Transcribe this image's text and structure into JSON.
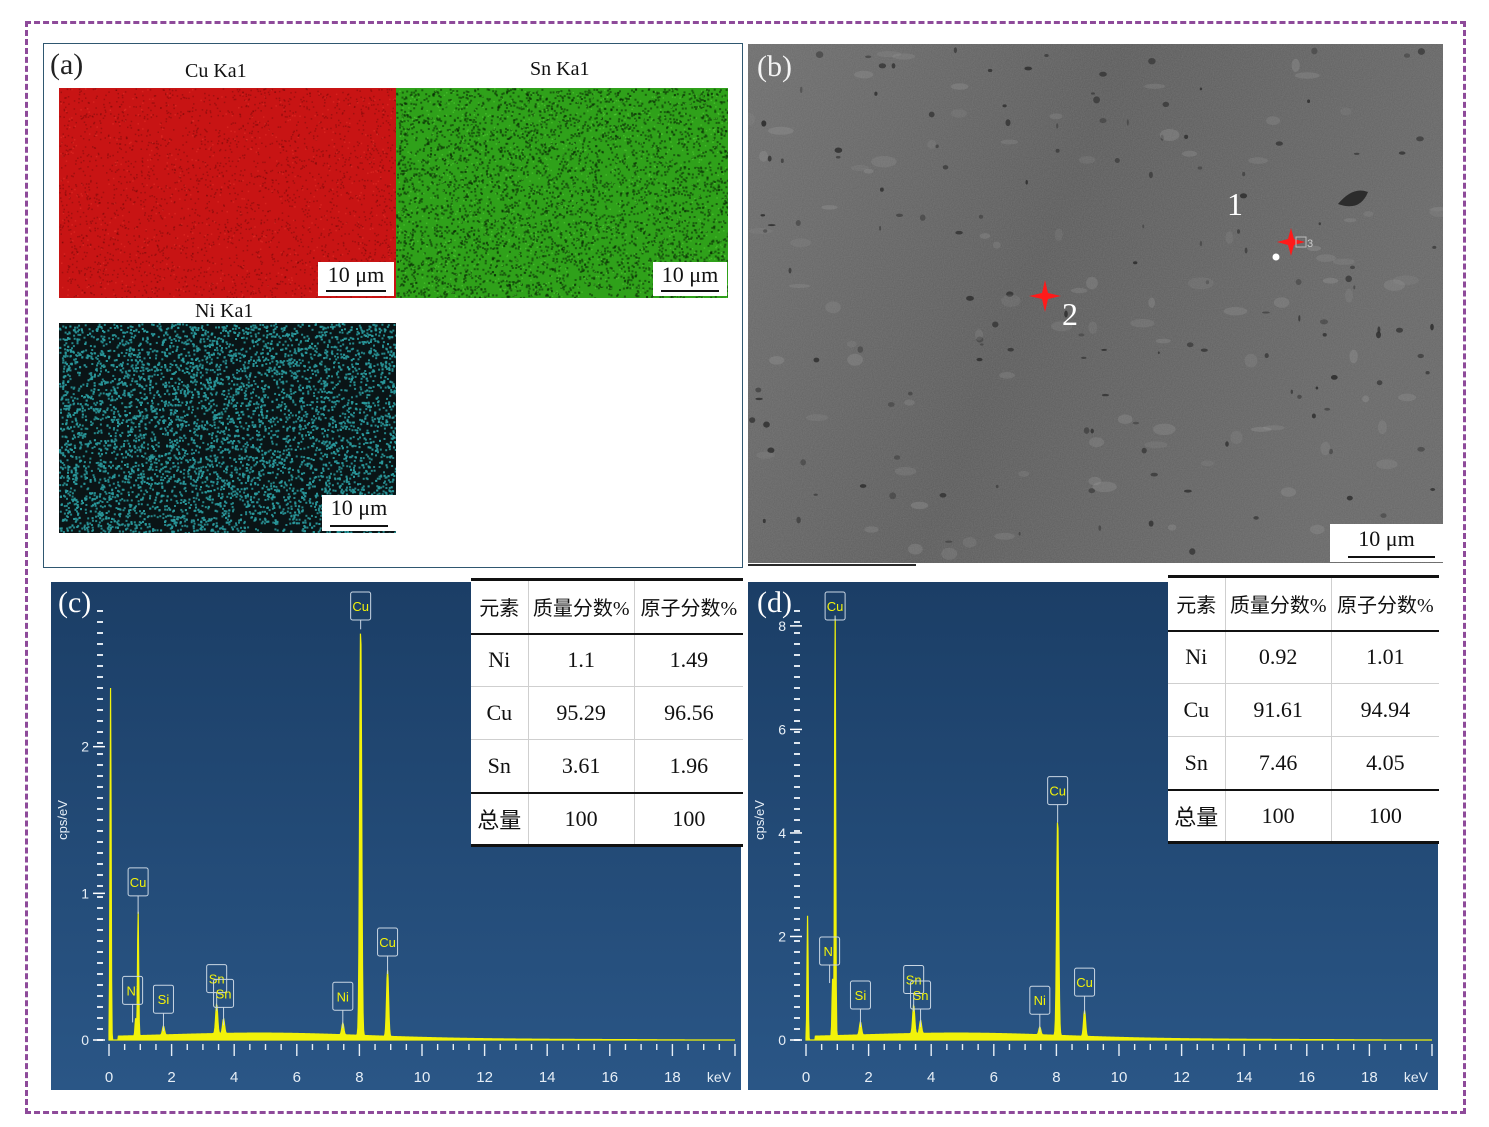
{
  "panels": {
    "a": {
      "label": "(a)",
      "maps": [
        {
          "title": "Cu Ka1",
          "color": "#c81414",
          "scale": "10 μm"
        },
        {
          "title": "Sn Ka1",
          "color": "#2fa11a",
          "scale": "10 μm"
        },
        {
          "title": "Ni Ka1",
          "color": "#2a9a9e",
          "scale": "10 μm"
        }
      ]
    },
    "b": {
      "label": "(b)",
      "points": [
        {
          "label": "1"
        },
        {
          "label": "2"
        }
      ],
      "small_marker": "3",
      "scale": "10 μm"
    },
    "c": {
      "label": "(c)",
      "table": {
        "headers": [
          "元素",
          "质量分数%",
          "原子分数%"
        ],
        "rows": [
          [
            "Ni",
            "1.1",
            "1.49"
          ],
          [
            "Cu",
            "95.29",
            "96.56"
          ],
          [
            "Sn",
            "3.61",
            "1.96"
          ]
        ],
        "total": [
          "总量",
          "100",
          "100"
        ]
      }
    },
    "d": {
      "label": "(d)",
      "table": {
        "headers": [
          "元素",
          "质量分数%",
          "原子分数%"
        ],
        "rows": [
          [
            "Ni",
            "0.92",
            "1.01"
          ],
          [
            "Cu",
            "91.61",
            "94.94"
          ],
          [
            "Sn",
            "7.46",
            "4.05"
          ]
        ],
        "total": [
          "总量",
          "100",
          "100"
        ]
      }
    }
  },
  "chart_data": [
    {
      "type": "line",
      "panel": "c",
      "xlabel": "keV",
      "ylabel": "cps/eV",
      "xlim": [
        0,
        20
      ],
      "ylim": [
        0,
        3
      ],
      "x_ticks": [
        "0",
        "2",
        "4",
        "6",
        "8",
        "10",
        "12",
        "14",
        "16",
        "18"
      ],
      "y_ticks": [
        "0",
        "1",
        "2"
      ],
      "peaks": [
        {
          "x": 0.05,
          "y": 2.4,
          "label": ""
        },
        {
          "x": 0.93,
          "y": 0.86,
          "label": "Cu"
        },
        {
          "x": 0.85,
          "y": 0.12,
          "label": "Ni"
        },
        {
          "x": 1.74,
          "y": 0.06,
          "label": "Si"
        },
        {
          "x": 3.44,
          "y": 0.2,
          "label": "Sn"
        },
        {
          "x": 3.66,
          "y": 0.1,
          "label": "Sn"
        },
        {
          "x": 7.47,
          "y": 0.08,
          "label": "Ni"
        },
        {
          "x": 8.04,
          "y": 2.8,
          "label": "Cu"
        },
        {
          "x": 8.9,
          "y": 0.45,
          "label": "Cu"
        }
      ],
      "colors": {
        "bg": "#1d4774",
        "line": "#f2f20a"
      }
    },
    {
      "type": "line",
      "panel": "d",
      "xlabel": "keV",
      "ylabel": "cps/eV",
      "xlim": [
        0,
        20
      ],
      "ylim": [
        0,
        8.5
      ],
      "x_ticks": [
        "0",
        "2",
        "4",
        "6",
        "8",
        "10",
        "12",
        "14",
        "16",
        "18"
      ],
      "y_ticks": [
        "0",
        "2",
        "4",
        "6",
        "8"
      ],
      "peaks": [
        {
          "x": 0.05,
          "y": 2.4,
          "label": ""
        },
        {
          "x": 0.93,
          "y": 8.2,
          "label": "Cu"
        },
        {
          "x": 0.85,
          "y": 1.1,
          "label": "Ni"
        },
        {
          "x": 1.74,
          "y": 0.25,
          "label": "Si"
        },
        {
          "x": 3.44,
          "y": 0.55,
          "label": "Sn"
        },
        {
          "x": 3.66,
          "y": 0.25,
          "label": "Sn"
        },
        {
          "x": 7.47,
          "y": 0.15,
          "label": "Ni"
        },
        {
          "x": 8.04,
          "y": 4.2,
          "label": "Cu"
        },
        {
          "x": 8.9,
          "y": 0.5,
          "label": "Cu"
        }
      ],
      "colors": {
        "bg": "#1d4774",
        "line": "#f2f20a"
      }
    }
  ]
}
